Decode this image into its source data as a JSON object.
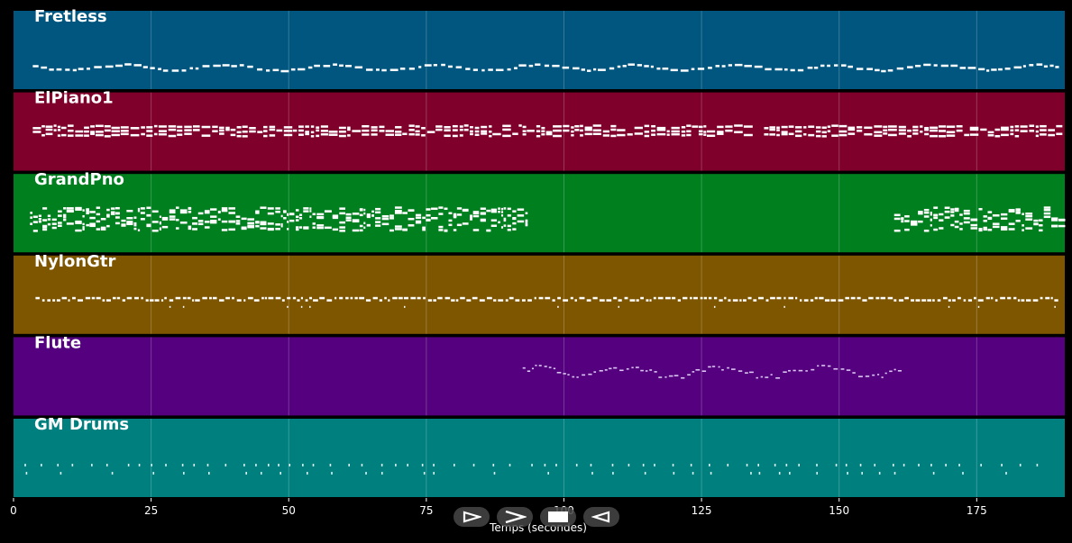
{
  "chart_data": {
    "type": "piano-roll",
    "xlabel": "Temps (secondes)",
    "xlim": [
      0,
      191
    ],
    "xticks": [
      0,
      25,
      50,
      75,
      100,
      125,
      150,
      175
    ],
    "grid": true,
    "tracks": [
      {
        "name": "Fretless",
        "color": "#00567f",
        "segments": [
          [
            3.5,
            189.5
          ]
        ],
        "style": "melody"
      },
      {
        "name": "ElPiano1",
        "color": "#7f002b",
        "segments": [
          [
            3.5,
            189.5
          ]
        ],
        "style": "chords"
      },
      {
        "name": "GrandPno",
        "color": "#007f1f",
        "segments": [
          [
            3,
            93
          ],
          [
            160,
            191
          ]
        ],
        "style": "dense"
      },
      {
        "name": "NylonGtr",
        "color": "#7f5600",
        "segments": [
          [
            4,
            189.5
          ]
        ],
        "style": "arpeggio"
      },
      {
        "name": "Flute",
        "color": "#55007f",
        "segments": [
          [
            92.5,
            161.5
          ]
        ],
        "style": "melody-thin"
      },
      {
        "name": "GM Drums",
        "color": "#007f7f",
        "segments": [
          [
            2,
            188
          ]
        ],
        "style": "drums"
      }
    ]
  },
  "transport": {
    "buttons": [
      {
        "name": "rewind-button",
        "icon": "rewind-icon"
      },
      {
        "name": "play-button",
        "icon": "play-icon"
      },
      {
        "name": "stop-button",
        "icon": "stop-icon"
      },
      {
        "name": "back-button",
        "icon": "back-icon"
      }
    ]
  }
}
